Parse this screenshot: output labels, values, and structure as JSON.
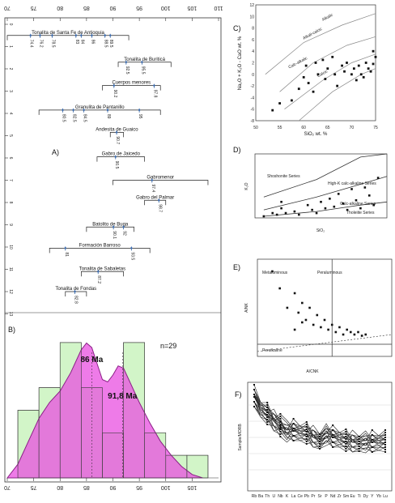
{
  "chart_data": [
    {
      "id": "A",
      "type": "range",
      "panel_label": "A)",
      "top_ticks": [
        "70",
        "75",
        "80",
        "85",
        "90",
        "95",
        "100",
        "105",
        "110"
      ],
      "top_tick_values": [
        70,
        75,
        80,
        85,
        90,
        95,
        100,
        105,
        110
      ],
      "left_ticks": [
        "0",
        "1",
        "2",
        "3",
        "4",
        "5",
        "6",
        "7",
        "8",
        "9",
        "10",
        "11",
        "12",
        "13"
      ],
      "bracket_units": [
        {
          "name": "Tonalita de Santa Fe de Antioquia",
          "row": 0.5,
          "min": 70,
          "max": 93,
          "ages": [
            74.4,
            76.2,
            78.5,
            83.0,
            84.0,
            86.0,
            88.5,
            89.5
          ]
        },
        {
          "name": "Tonalita de Buriticá",
          "row": 1.7,
          "min": 91,
          "max": 101,
          "ages": [
            92.5,
            95.5
          ]
        },
        {
          "name": "Cuerpos menores",
          "row": 2.75,
          "min": 88,
          "max": 99,
          "ages": [
            90.2,
            97.8
          ]
        },
        {
          "name": "Granulita de Pantanillo",
          "row": 3.85,
          "min": 76,
          "max": 99,
          "ages": [
            80.5,
            82.5,
            84.5,
            89.0,
            95.0
          ]
        },
        {
          "name": "Andesita de Guaico",
          "row": 4.85,
          "min": 89.5,
          "max": 92,
          "ages": [
            90.7
          ]
        },
        {
          "name": "Gabro de Jaicedo",
          "row": 5.95,
          "min": 87,
          "max": 96,
          "ages": [
            90.5
          ]
        },
        {
          "name": "Gabromenor",
          "row": 7.0,
          "min": 90,
          "max": 108,
          "ages": [
            97.4
          ]
        },
        {
          "name": "Gabro del Palmar",
          "row": 7.9,
          "min": 96,
          "max": 100,
          "ages": [
            98.7
          ]
        },
        {
          "name": "Batolito de Buga",
          "row": 9.1,
          "min": 85,
          "max": 94,
          "ages": [
            90.1,
            92.0
          ]
        },
        {
          "name": "Formación Barroso",
          "row": 10.05,
          "min": 78,
          "max": 97,
          "ages": [
            81.0,
            93.5
          ]
        },
        {
          "name": "Tonalita de Sabaletas",
          "row": 11.1,
          "min": 84,
          "max": 92,
          "ages": [
            87.2
          ]
        },
        {
          "name": "Tonalita de Fondas",
          "row": 12.0,
          "min": 81,
          "max": 85,
          "ages": [
            82.8
          ]
        }
      ]
    },
    {
      "id": "B",
      "type": "histogram",
      "panel_label": "B)",
      "n_label": "n=29",
      "x_ticks": [
        "70",
        "75",
        "80",
        "85",
        "90",
        "95",
        "100",
        "105"
      ],
      "x_tick_values": [
        70,
        75,
        80,
        85,
        90,
        95,
        100,
        105
      ],
      "bins": [
        72,
        76,
        80,
        84,
        88,
        92,
        96,
        100,
        104,
        108
      ],
      "counts": [
        3,
        4,
        6,
        4,
        2,
        6,
        2,
        1,
        1
      ],
      "kde": [
        [
          70,
          0.0
        ],
        [
          72,
          0.6
        ],
        [
          74,
          1.6
        ],
        [
          76,
          2.6
        ],
        [
          78,
          3.3
        ],
        [
          80,
          3.8
        ],
        [
          82,
          4.6
        ],
        [
          84,
          5.6
        ],
        [
          85,
          5.9
        ],
        [
          86,
          5.7
        ],
        [
          87,
          5.0
        ],
        [
          88,
          4.3
        ],
        [
          89,
          4.2
        ],
        [
          90,
          4.5
        ],
        [
          91,
          4.9
        ],
        [
          92,
          4.8
        ],
        [
          93,
          4.3
        ],
        [
          95,
          3.3
        ],
        [
          97,
          2.4
        ],
        [
          99,
          1.6
        ],
        [
          101,
          1.0
        ],
        [
          103,
          0.5
        ],
        [
          105,
          0.15
        ],
        [
          107,
          0.0
        ]
      ],
      "peaks": [
        {
          "label": "86 Ma",
          "x": 86
        },
        {
          "label": "91,8 Ma",
          "x": 91.8
        }
      ]
    },
    {
      "id": "C",
      "type": "scatter",
      "panel_label": "C)",
      "xlabel": "SiO₂ wt. %",
      "ylabel": "Na₂O + K₂O - CaO wt. %",
      "xlim": [
        50,
        75
      ],
      "ylim": [
        -8,
        12
      ],
      "x_ticks": [
        "50",
        "55",
        "60",
        "65",
        "70",
        "75"
      ],
      "y_ticks": [
        "-8",
        "-6",
        "-4",
        "-2",
        "0",
        "2",
        "4",
        "6",
        "8",
        "10",
        "12"
      ],
      "field_labels": [
        "Alkalic",
        "Alkali-calcic",
        "Calc-alkalic",
        "Calcic"
      ],
      "points": [
        [
          53.5,
          -6.2
        ],
        [
          55,
          -5
        ],
        [
          57.5,
          -4.5
        ],
        [
          59,
          -2.5
        ],
        [
          60,
          -0.5
        ],
        [
          60.5,
          1.5
        ],
        [
          61,
          -1.5
        ],
        [
          62,
          -3
        ],
        [
          62.5,
          2
        ],
        [
          63,
          0
        ],
        [
          64,
          2.5
        ],
        [
          64.5,
          -0.8
        ],
        [
          65,
          1
        ],
        [
          66,
          3
        ],
        [
          66.5,
          0
        ],
        [
          67,
          -2
        ],
        [
          68,
          1.5
        ],
        [
          68.5,
          0.5
        ],
        [
          69,
          2
        ],
        [
          70,
          0
        ],
        [
          70.5,
          1
        ],
        [
          71,
          -1
        ],
        [
          71.5,
          1.5
        ],
        [
          72,
          0
        ],
        [
          72.5,
          -0.5
        ],
        [
          73,
          2
        ],
        [
          73.5,
          1
        ],
        [
          74,
          0.5
        ],
        [
          74.5,
          1.8
        ],
        [
          74.5,
          4
        ],
        [
          75,
          3
        ]
      ]
    },
    {
      "id": "D",
      "type": "scatter",
      "panel_label": "D)",
      "xlabel": "SiO₂",
      "ylabel": "K₂O",
      "field_labels": [
        "Shoshonite Series",
        "High-K calc-alkaline Series",
        "Calc-alkaline Series",
        "Tholeiite Series"
      ],
      "points": [
        [
          48,
          0.1
        ],
        [
          50,
          0.3
        ],
        [
          51,
          0.2
        ],
        [
          52,
          0.6
        ],
        [
          53,
          0.3
        ],
        [
          55,
          0.4
        ],
        [
          56,
          0.2
        ],
        [
          58,
          0.8
        ],
        [
          59,
          0.5
        ],
        [
          60,
          0.3
        ],
        [
          61,
          1.0
        ],
        [
          62,
          0.6
        ],
        [
          63,
          1.2
        ],
        [
          64,
          0.7
        ],
        [
          65,
          1.5
        ],
        [
          66,
          0.9
        ],
        [
          67,
          0.5
        ],
        [
          68,
          1.8
        ],
        [
          69,
          1.1
        ],
        [
          70,
          0.6
        ],
        [
          71,
          1.9
        ],
        [
          72,
          1.4
        ],
        [
          73,
          0.8
        ],
        [
          74,
          2.5
        ],
        [
          52,
          1.0
        ]
      ]
    },
    {
      "id": "E",
      "type": "scatter",
      "panel_label": "E)",
      "xlabel": "A/CNK",
      "ylabel": "A/NK",
      "field_labels": [
        "Metaluminous",
        "Peraluminous",
        "Peralkaline"
      ],
      "points": [
        [
          0.2,
          3.5
        ],
        [
          0.3,
          2.8
        ],
        [
          0.4,
          2.0
        ],
        [
          0.5,
          2.6
        ],
        [
          0.55,
          1.8
        ],
        [
          0.6,
          2.2
        ],
        [
          0.65,
          1.5
        ],
        [
          0.7,
          2.0
        ],
        [
          0.75,
          1.3
        ],
        [
          0.8,
          1.7
        ],
        [
          0.85,
          1.2
        ],
        [
          0.9,
          1.5
        ],
        [
          0.95,
          1.1
        ],
        [
          1.0,
          1.3
        ],
        [
          1.05,
          1.0
        ],
        [
          1.1,
          1.2
        ],
        [
          1.15,
          0.9
        ],
        [
          1.2,
          1.1
        ],
        [
          1.25,
          1.0
        ],
        [
          1.3,
          0.9
        ],
        [
          1.35,
          1.0
        ],
        [
          1.4,
          0.85
        ],
        [
          1.45,
          0.9
        ],
        [
          0.5,
          1.1
        ],
        [
          0.6,
          1.4
        ]
      ]
    },
    {
      "id": "F",
      "type": "line",
      "panel_label": "F)",
      "ylabel": "Sample/MORB",
      "x_ticks": [
        "Rb",
        "Ba",
        "Th",
        "U",
        "Nb",
        "K",
        "La",
        "Ce",
        "Pb",
        "Pr",
        "Sr",
        "P",
        "Nd",
        "Zr",
        "Sm",
        "Eu",
        "Ti",
        "Dy",
        "Y",
        "Yb",
        "Lu"
      ]
    }
  ]
}
